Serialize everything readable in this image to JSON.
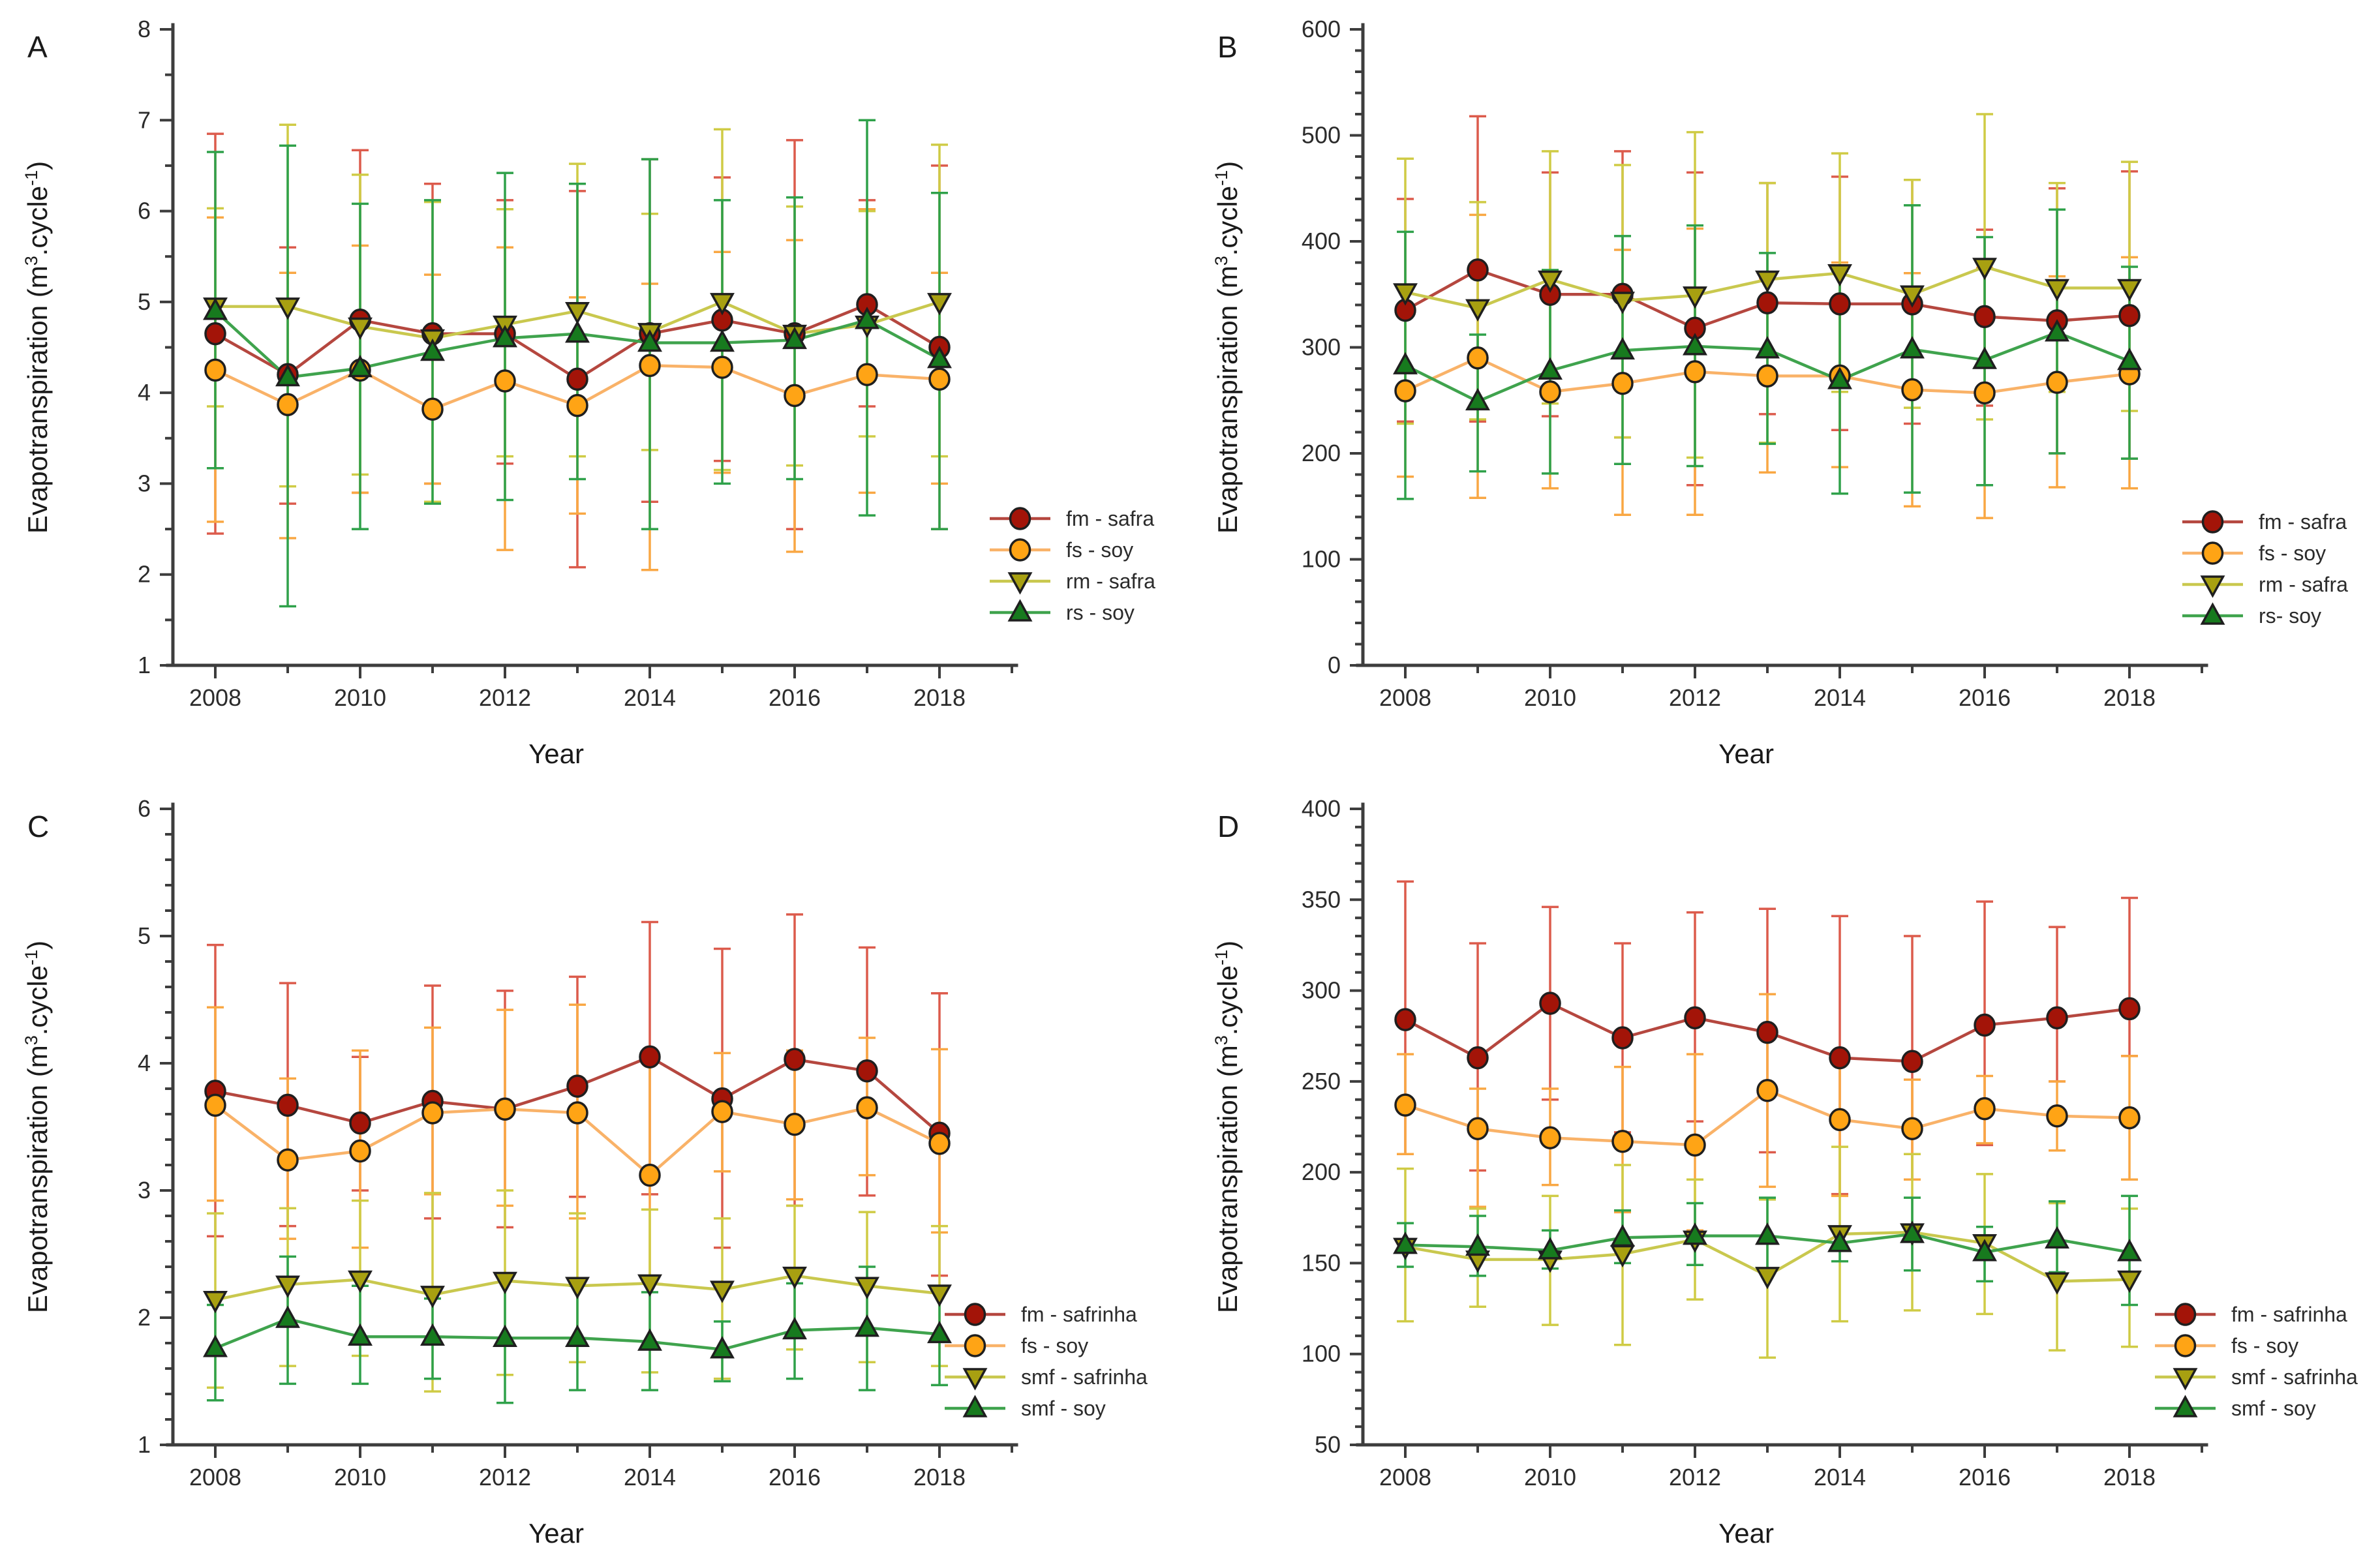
{
  "figure": {
    "background": "#ffffff",
    "axis_color": "#3d3d3d",
    "marker_stroke": "#1f1f1f",
    "tick_label_color": "#2b2b2b"
  },
  "chart_data": [
    {
      "type": "line",
      "panel_label": "A",
      "xlabel": "Year",
      "ylabel_parts": [
        {
          "t": "Evapotranspiration (m"
        },
        {
          "t": "3",
          "sup": true
        },
        {
          "t": ".cycle"
        },
        {
          "t": "-1",
          "sup": true
        },
        {
          "t": ")"
        }
      ],
      "x": [
        2008,
        2009,
        2010,
        2011,
        2012,
        2013,
        2014,
        2015,
        2016,
        2017,
        2018
      ],
      "xticks_labeled": [
        2008,
        2010,
        2012,
        2014,
        2016,
        2018
      ],
      "ylim": [
        1,
        8
      ],
      "ytick_step": 1,
      "yminor_step": 0.5,
      "grid": false,
      "legend_position": "right",
      "legend_x": 1517,
      "legend_y": 795,
      "series": [
        {
          "name": "fm - safra",
          "marker": "circle",
          "color_marker": "#A31408",
          "color_line": "#B5473F",
          "color_error": "#DC5B4C",
          "mean": [
            4.65,
            4.2,
            4.8,
            4.65,
            4.65,
            4.15,
            4.65,
            4.8,
            4.65,
            4.97,
            4.5
          ],
          "upper": [
            6.85,
            5.6,
            6.67,
            6.3,
            6.12,
            6.22,
            6.57,
            6.37,
            6.78,
            6.12,
            6.5
          ],
          "lower": [
            2.45,
            2.78,
            2.9,
            3.0,
            3.22,
            2.08,
            2.8,
            3.25,
            2.5,
            3.85,
            2.5
          ]
        },
        {
          "name": "fs - soy",
          "marker": "circle",
          "color_marker": "#FFA415",
          "color_line": "#F9B268",
          "color_error": "#F9A743",
          "mean": [
            4.25,
            3.87,
            4.25,
            3.82,
            4.13,
            3.86,
            4.3,
            4.28,
            3.97,
            4.2,
            4.15
          ],
          "upper": [
            5.93,
            5.32,
            5.62,
            5.3,
            5.6,
            5.05,
            5.2,
            5.55,
            5.68,
            6.02,
            5.32
          ],
          "lower": [
            2.58,
            2.4,
            2.9,
            3.0,
            2.27,
            2.67,
            2.05,
            3.12,
            2.25,
            2.9,
            3.0
          ]
        },
        {
          "name": "rm - safra",
          "marker": "tri-down",
          "color_marker": "#A8A011",
          "color_line": "#C9C84E",
          "color_error": "#CFCB45",
          "mean": [
            4.95,
            4.95,
            4.73,
            4.6,
            4.75,
            4.9,
            4.67,
            5.0,
            4.65,
            4.75,
            5.0
          ],
          "upper": [
            6.03,
            6.95,
            6.4,
            6.1,
            6.02,
            6.52,
            5.97,
            6.9,
            6.05,
            6.0,
            6.73
          ],
          "lower": [
            3.85,
            2.97,
            3.1,
            2.8,
            3.3,
            3.3,
            3.37,
            3.15,
            3.2,
            3.52,
            3.3
          ]
        },
        {
          "name": "rs - soy",
          "marker": "tri-up",
          "color_marker": "#177A1E",
          "color_line": "#3FA34D",
          "color_error": "#2FA14A",
          "mean": [
            4.9,
            4.17,
            4.27,
            4.45,
            4.6,
            4.65,
            4.55,
            4.55,
            4.58,
            4.8,
            4.37
          ],
          "upper": [
            6.65,
            6.72,
            6.08,
            6.12,
            6.42,
            6.3,
            6.57,
            6.12,
            6.15,
            7.0,
            6.2
          ],
          "lower": [
            3.17,
            1.65,
            2.5,
            2.78,
            2.82,
            3.05,
            2.5,
            3.0,
            3.05,
            2.65,
            2.5
          ]
        }
      ]
    },
    {
      "type": "line",
      "panel_label": "B",
      "xlabel": "Year",
      "ylabel_parts": [
        {
          "t": "Evapotranspiration (m"
        },
        {
          "t": "3",
          "sup": true
        },
        {
          "t": ".cycle"
        },
        {
          "t": "-1",
          "sup": true
        },
        {
          "t": ")"
        }
      ],
      "x": [
        2008,
        2009,
        2010,
        2011,
        2012,
        2013,
        2014,
        2015,
        2016,
        2017,
        2018
      ],
      "xticks_labeled": [
        2008,
        2010,
        2012,
        2014,
        2016,
        2018
      ],
      "ylim": [
        0,
        600
      ],
      "ytick_step": 100,
      "yminor_step": 20,
      "grid": false,
      "legend_position": "right",
      "legend_x": 1521,
      "legend_y": 800,
      "series": [
        {
          "name": "fm - safra",
          "marker": "circle",
          "color_marker": "#A31408",
          "color_line": "#B5473F",
          "color_error": "#DC5B4C",
          "mean": [
            335,
            373,
            350,
            350,
            318,
            342,
            341,
            341,
            329,
            325,
            330
          ],
          "upper": [
            440,
            518,
            465,
            485,
            465,
            455,
            461,
            458,
            411,
            450,
            466
          ],
          "lower": [
            230,
            230,
            235,
            215,
            170,
            237,
            222,
            228,
            245,
            200,
            195
          ]
        },
        {
          "name": "fs - soy",
          "marker": "circle",
          "color_marker": "#FFA415",
          "color_line": "#F9B268",
          "color_error": "#F9A743",
          "mean": [
            259,
            290,
            258,
            266,
            277,
            273,
            273,
            260,
            257,
            267,
            275
          ],
          "upper": [
            340,
            425,
            372,
            392,
            412,
            365,
            380,
            370,
            375,
            367,
            385
          ],
          "lower": [
            178,
            158,
            167,
            142,
            142,
            182,
            187,
            150,
            139,
            168,
            167
          ]
        },
        {
          "name": "rm - safra",
          "marker": "tri-down",
          "color_marker": "#A8A011",
          "color_line": "#C9C84E",
          "color_error": "#CFCB45",
          "mean": [
            352,
            337,
            364,
            344,
            349,
            364,
            370,
            350,
            376,
            356,
            356
          ],
          "upper": [
            478,
            437,
            485,
            472,
            503,
            455,
            483,
            458,
            520,
            455,
            475
          ],
          "lower": [
            228,
            232,
            247,
            215,
            196,
            210,
            258,
            243,
            232,
            258,
            240
          ]
        },
        {
          "name": "rs- soy",
          "marker": "tri-up",
          "color_marker": "#177A1E",
          "color_line": "#3FA34D",
          "color_error": "#2FA14A",
          "mean": [
            283,
            249,
            278,
            297,
            301,
            298,
            269,
            298,
            288,
            314,
            287
          ],
          "upper": [
            409,
            312,
            373,
            405,
            415,
            389,
            372,
            434,
            404,
            430,
            376
          ],
          "lower": [
            157,
            183,
            181,
            190,
            188,
            209,
            162,
            163,
            170,
            200,
            195
          ]
        }
      ]
    },
    {
      "type": "line",
      "panel_label": "C",
      "xlabel": "Year",
      "ylabel_parts": [
        {
          "t": "Evapotranspiration (m"
        },
        {
          "t": "3",
          "sup": true
        },
        {
          "t": ".cycle"
        },
        {
          "t": "-1",
          "sup": true
        },
        {
          "t": ")"
        }
      ],
      "x": [
        2008,
        2009,
        2010,
        2011,
        2012,
        2013,
        2014,
        2015,
        2016,
        2017,
        2018
      ],
      "xticks_labeled": [
        2008,
        2010,
        2012,
        2014,
        2016,
        2018
      ],
      "ylim": [
        1,
        6
      ],
      "ytick_step": 1,
      "yminor_step": 0.2,
      "grid": false,
      "legend_position": "right",
      "legend_x": 1448,
      "legend_y": 820,
      "series": [
        {
          "name": "fm - safrinha",
          "marker": "circle",
          "color_marker": "#A31408",
          "color_line": "#B5473F",
          "color_error": "#DC5B4C",
          "mean": [
            3.78,
            3.67,
            3.53,
            3.7,
            3.64,
            3.82,
            4.05,
            3.72,
            4.03,
            3.94,
            3.45
          ],
          "upper": [
            4.93,
            4.63,
            4.05,
            4.61,
            4.57,
            4.68,
            5.11,
            4.9,
            5.17,
            4.91,
            4.55
          ],
          "lower": [
            2.64,
            2.72,
            3.0,
            2.78,
            2.71,
            2.95,
            2.97,
            2.55,
            2.88,
            2.96,
            2.33
          ]
        },
        {
          "name": "fs - soy",
          "marker": "circle",
          "color_marker": "#FFA415",
          "color_line": "#F9B268",
          "color_error": "#F9A743",
          "mean": [
            3.67,
            3.24,
            3.31,
            3.61,
            3.64,
            3.61,
            3.12,
            3.62,
            3.52,
            3.65,
            3.37
          ],
          "upper": [
            4.44,
            3.88,
            4.1,
            4.28,
            4.42,
            4.46,
            4.0,
            4.08,
            4.1,
            4.2,
            4.11
          ],
          "lower": [
            2.92,
            2.62,
            2.55,
            2.97,
            2.88,
            2.78,
            2.3,
            3.15,
            2.93,
            3.12,
            2.67
          ]
        },
        {
          "name": "smf - safrinha",
          "marker": "tri-down",
          "color_marker": "#A8A011",
          "color_line": "#C9C84E",
          "color_error": "#CFCB45",
          "mean": [
            2.14,
            2.26,
            2.3,
            2.18,
            2.29,
            2.25,
            2.27,
            2.22,
            2.33,
            2.25,
            2.19
          ],
          "upper": [
            2.82,
            2.86,
            2.92,
            2.98,
            3.0,
            2.82,
            2.85,
            2.78,
            2.88,
            2.83,
            2.72
          ],
          "lower": [
            1.45,
            1.62,
            1.7,
            1.42,
            1.55,
            1.65,
            1.57,
            1.52,
            1.75,
            1.65,
            1.62
          ]
        },
        {
          "name": "smf - soy",
          "marker": "tri-up",
          "color_marker": "#177A1E",
          "color_line": "#3FA34D",
          "color_error": "#2FA14A",
          "mean": [
            1.76,
            1.99,
            1.85,
            1.85,
            1.84,
            1.84,
            1.81,
            1.75,
            1.9,
            1.92,
            1.87
          ],
          "upper": [
            2.1,
            2.48,
            2.25,
            2.15,
            2.32,
            2.25,
            2.2,
            1.97,
            2.27,
            2.4,
            2.25
          ],
          "lower": [
            1.35,
            1.48,
            1.48,
            1.52,
            1.33,
            1.43,
            1.43,
            1.5,
            1.52,
            1.43,
            1.47
          ]
        }
      ]
    },
    {
      "type": "line",
      "panel_label": "D",
      "xlabel": "Year",
      "ylabel_parts": [
        {
          "t": "Evapotranspiration (m"
        },
        {
          "t": "3",
          "sup": true
        },
        {
          "t": ".cycle"
        },
        {
          "t": "-1",
          "sup": true
        },
        {
          "t": ")"
        }
      ],
      "x": [
        2008,
        2009,
        2010,
        2011,
        2012,
        2013,
        2014,
        2015,
        2016,
        2017,
        2018
      ],
      "xticks_labeled": [
        2008,
        2010,
        2012,
        2014,
        2016,
        2018
      ],
      "ylim": [
        50,
        400
      ],
      "ytick_step": 50,
      "yminor_step": 10,
      "grid": false,
      "legend_position": "right",
      "legend_x": 1479,
      "legend_y": 820,
      "series": [
        {
          "name": "fm - safrinha",
          "marker": "circle",
          "color_marker": "#A31408",
          "color_line": "#B5473F",
          "color_error": "#DC5B4C",
          "mean": [
            284,
            263,
            293,
            274,
            285,
            277,
            263,
            261,
            281,
            285,
            290
          ],
          "upper": [
            360,
            326,
            346,
            326,
            343,
            345,
            341,
            330,
            349,
            335,
            351
          ],
          "lower": [
            210,
            201,
            240,
            222,
            228,
            211,
            188,
            196,
            215,
            250,
            264
          ]
        },
        {
          "name": "fs - soy",
          "marker": "circle",
          "color_marker": "#FFA415",
          "color_line": "#F9B268",
          "color_error": "#F9A743",
          "mean": [
            237,
            224,
            219,
            217,
            215,
            245,
            229,
            224,
            235,
            231,
            230
          ],
          "upper": [
            265,
            246,
            246,
            258,
            265,
            298,
            265,
            251,
            253,
            250,
            264
          ],
          "lower": [
            210,
            181,
            193,
            178,
            168,
            192,
            187,
            196,
            216,
            212,
            196
          ]
        },
        {
          "name": "smf - safrinha",
          "marker": "tri-down",
          "color_marker": "#A8A011",
          "color_line": "#C9C84E",
          "color_error": "#CFCB45",
          "mean": [
            159,
            152,
            152,
            155,
            163,
            143,
            166,
            167,
            161,
            140,
            141
          ],
          "upper": [
            202,
            180,
            187,
            204,
            196,
            185,
            214,
            210,
            199,
            183,
            180
          ],
          "lower": [
            118,
            126,
            116,
            105,
            130,
            98,
            118,
            124,
            122,
            102,
            104
          ]
        },
        {
          "name": "smf - soy",
          "marker": "tri-up",
          "color_marker": "#177A1E",
          "color_line": "#3FA34D",
          "color_error": "#2FA14A",
          "mean": [
            160,
            159,
            157,
            164,
            165,
            165,
            161,
            166,
            156,
            163,
            156
          ],
          "upper": [
            172,
            176,
            168,
            179,
            183,
            186,
            168,
            186,
            170,
            184,
            187
          ],
          "lower": [
            148,
            143,
            147,
            150,
            149,
            147,
            151,
            146,
            140,
            145,
            127
          ]
        }
      ]
    }
  ]
}
